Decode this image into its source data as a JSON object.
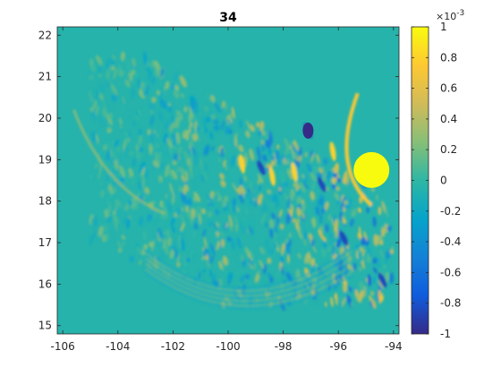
{
  "chart_data": {
    "type": "heatmap",
    "title": "34",
    "xlabel": "",
    "ylabel": "",
    "xlim": [
      -106.2,
      -93.8
    ],
    "ylim": [
      14.8,
      22.2
    ],
    "x_ticks": [
      -106,
      -104,
      -102,
      -100,
      -98,
      -96,
      -94
    ],
    "y_ticks": [
      15,
      16,
      17,
      18,
      19,
      20,
      21,
      22
    ],
    "colorbar": {
      "clim": [
        -1,
        1
      ],
      "exponent_label": "×10",
      "exponent_power": "-3",
      "ticks": [
        -1,
        -0.8,
        -0.6,
        -0.4,
        -0.2,
        0,
        0.2,
        0.4,
        0.6,
        0.8,
        1
      ],
      "colormap": "parula",
      "colors": [
        "#352a87",
        "#0f5cdd",
        "#1481d6",
        "#06a4ca",
        "#2eb7a4",
        "#87bf77",
        "#d1bb59",
        "#fec832",
        "#f9fb0e"
      ]
    },
    "field_description_values": {
      "background_value": -0.05,
      "strong_positive_spot": {
        "x": -94.8,
        "y": 18.75,
        "value": 1
      },
      "strong_negative_spot": {
        "x": -97.1,
        "y": 19.7,
        "value": -1
      },
      "active_region_lon_range": [
        -105,
        -94
      ],
      "active_region_lat_range": [
        15.5,
        21.5
      ]
    }
  }
}
